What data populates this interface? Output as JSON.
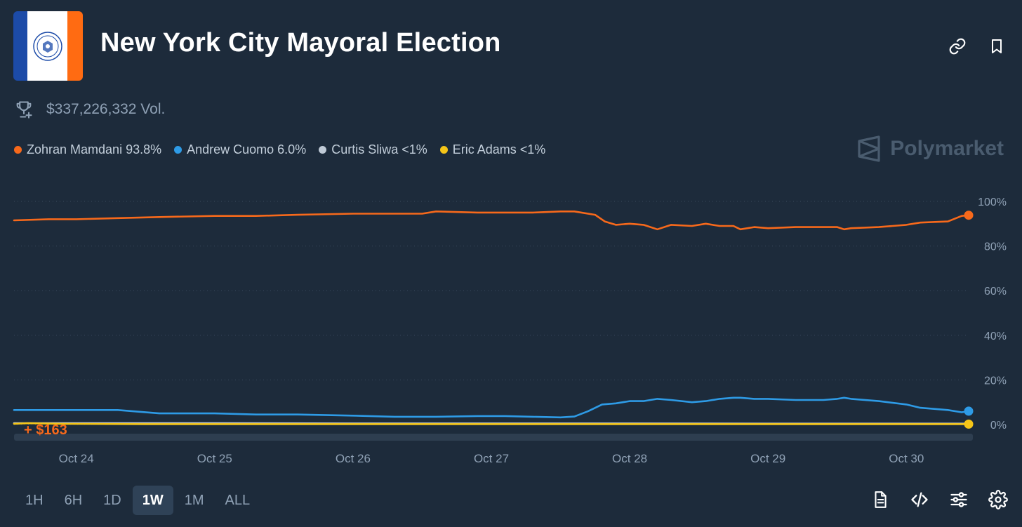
{
  "header": {
    "title": "New York City Mayoral Election",
    "volume": "$337,226,332 Vol.",
    "brand": "Polymarket"
  },
  "legend": [
    {
      "label": "Zohran Mamdani 93.8%",
      "color": "#f7691b"
    },
    {
      "label": "Andrew Cuomo 6.0%",
      "color": "#2e9be6"
    },
    {
      "label": "Curtis Sliwa <1%",
      "color": "#bfcad6"
    },
    {
      "label": "Eric Adams <1%",
      "color": "#f5c518"
    }
  ],
  "timeframes": [
    {
      "label": "1H",
      "active": false
    },
    {
      "label": "6H",
      "active": false
    },
    {
      "label": "1D",
      "active": false
    },
    {
      "label": "1W",
      "active": true
    },
    {
      "label": "1M",
      "active": false
    },
    {
      "label": "ALL",
      "active": false
    }
  ],
  "icons": [
    "link-icon",
    "bookmark-icon",
    "trophy-icon",
    "document-icon",
    "code-icon",
    "sliders-icon",
    "settings-icon"
  ],
  "chart_data": {
    "type": "line",
    "x_unit": "days since Oct 24",
    "x_range": [
      -0.45,
      6.45
    ],
    "xticks": [
      {
        "x": 0,
        "label": "Oct 24"
      },
      {
        "x": 1,
        "label": "Oct 25"
      },
      {
        "x": 2,
        "label": "Oct 26"
      },
      {
        "x": 3,
        "label": "Oct 27"
      },
      {
        "x": 4,
        "label": "Oct 28"
      },
      {
        "x": 5,
        "label": "Oct 29"
      },
      {
        "x": 6,
        "label": "Oct 30"
      }
    ],
    "yticks": [
      {
        "y": 100,
        "label": "100%"
      },
      {
        "y": 80,
        "label": "80%"
      },
      {
        "y": 60,
        "label": "60%"
      },
      {
        "y": 40,
        "label": "40%"
      },
      {
        "y": 20,
        "label": "20%"
      },
      {
        "y": 0,
        "label": "0%"
      }
    ],
    "ylim": [
      0,
      100
    ],
    "grid": true,
    "volume_label": "+ $163",
    "series": [
      {
        "name": "Zohran Mamdani",
        "color": "#f7691b",
        "x": [
          -0.45,
          -0.2,
          0,
          0.3,
          0.6,
          1,
          1.3,
          1.6,
          2,
          2.3,
          2.5,
          2.6,
          2.9,
          3.1,
          3.3,
          3.5,
          3.6,
          3.75,
          3.82,
          3.9,
          4.0,
          4.1,
          4.2,
          4.3,
          4.45,
          4.55,
          4.65,
          4.75,
          4.8,
          4.9,
          5.0,
          5.2,
          5.4,
          5.5,
          5.55,
          5.6,
          5.8,
          6.0,
          6.1,
          6.3,
          6.4,
          6.45
        ],
        "y": [
          91.5,
          92.0,
          92.0,
          92.5,
          93.0,
          93.5,
          93.5,
          94.0,
          94.5,
          94.5,
          94.5,
          95.5,
          95.0,
          95.0,
          95.0,
          95.5,
          95.5,
          94.0,
          91.0,
          89.5,
          90.0,
          89.5,
          87.5,
          89.5,
          89.0,
          90.0,
          89.0,
          89.0,
          87.5,
          88.5,
          88.0,
          88.5,
          88.5,
          88.5,
          87.5,
          88.0,
          88.5,
          89.5,
          90.5,
          91.0,
          93.5,
          93.8
        ]
      },
      {
        "name": "Andrew Cuomo",
        "color": "#2e9be6",
        "x": [
          -0.45,
          -0.2,
          0,
          0.3,
          0.6,
          1,
          1.3,
          1.6,
          2,
          2.3,
          2.5,
          2.6,
          2.9,
          3.1,
          3.3,
          3.5,
          3.6,
          3.7,
          3.8,
          3.9,
          4.0,
          4.1,
          4.2,
          4.3,
          4.45,
          4.55,
          4.65,
          4.75,
          4.8,
          4.9,
          5.0,
          5.2,
          5.4,
          5.5,
          5.55,
          5.6,
          5.8,
          6.0,
          6.1,
          6.3,
          6.4,
          6.45
        ],
        "y": [
          6.5,
          6.5,
          6.5,
          6.5,
          5.0,
          5.0,
          4.5,
          4.5,
          4.0,
          3.5,
          3.5,
          3.5,
          3.8,
          3.8,
          3.5,
          3.2,
          3.6,
          6.0,
          9.0,
          9.5,
          10.5,
          10.5,
          11.5,
          11.0,
          10.0,
          10.5,
          11.5,
          12.0,
          12.0,
          11.5,
          11.5,
          11.0,
          11.0,
          11.5,
          12.0,
          11.5,
          10.5,
          9.0,
          7.5,
          6.5,
          5.5,
          6.0
        ]
      },
      {
        "name": "Curtis Sliwa",
        "color": "#bfcad6",
        "x": [
          -0.45,
          1,
          2,
          3,
          4,
          5,
          6,
          6.45
        ],
        "y": [
          0.6,
          0.6,
          0.5,
          0.5,
          0.5,
          0.4,
          0.4,
          0.4
        ]
      },
      {
        "name": "Eric Adams",
        "color": "#f5c518",
        "x": [
          -0.45,
          -0.35,
          -0.1,
          0.5,
          1,
          2,
          3,
          4,
          5,
          6,
          6.45
        ],
        "y": [
          0.3,
          0.6,
          0.3,
          0.2,
          0.2,
          0.2,
          0.2,
          0.2,
          0.2,
          0.2,
          0.2
        ]
      }
    ]
  }
}
